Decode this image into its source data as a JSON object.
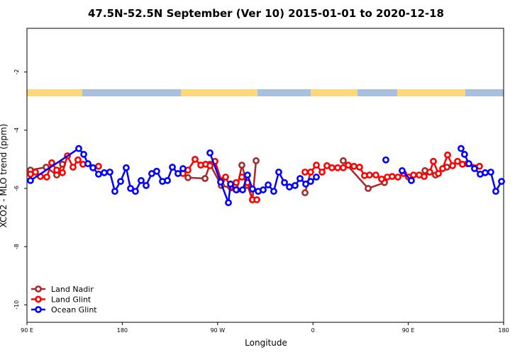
{
  "chart_data": {
    "type": "line",
    "title": "47.5N-52.5N September (Ver 10)   2015-01-01 to 2020-12-18",
    "xlabel": "Longitude",
    "ylabel": "XCO2 - MLO trend (ppm)",
    "xlim": [
      90,
      540
    ],
    "xticks": [
      {
        "value": 90,
        "label": "90 E"
      },
      180,
      {
        "value": 270,
        "label": "90 W"
      },
      {
        "value": 360,
        "label": "0"
      },
      {
        "value": 450,
        "label": "90 E"
      },
      180.0000001
    ],
    "ylim": [
      -10.6,
      -0.5
    ],
    "yticks": [
      -2,
      -4,
      -6,
      -8,
      -10
    ],
    "legend": "bottom-left",
    "series": [
      {
        "name": "Land Nadir",
        "color": "#a52a2a",
        "x": [
          93.3,
          108.1,
          118.1,
          123.5,
          null,
          242.0,
          258.1,
          262.8,
          273.5,
          282.8,
          288.2,
          292.9,
          298.2,
          302.9,
          306.3,
          null,
          352.5,
          357.8,
          null,
          388.6,
          412.1,
          427.5,
          null,
          465.7,
          475.7,
          486.4
        ],
        "values": [
          -5.37,
          -5.27,
          -5.54,
          -5.17,
          null,
          -5.63,
          -5.66,
          -5.17,
          -5.9,
          -5.98,
          -6.05,
          -5.2,
          -5.9,
          -6.39,
          -5.05,
          null,
          -6.15,
          -5.44,
          null,
          -5.05,
          -6.0,
          -5.8,
          null,
          -5.39,
          -5.54,
          -5.27
        ]
      },
      {
        "name": "Land Glint",
        "color": "#ff0000",
        "x": [
          93.3,
          98.0,
          102.7,
          108.7,
          113.4,
          118.1,
          123.5,
          128.2,
          133.5,
          138.2,
          142.9,
          157.6,
          null,
          237.3,
          242.0,
          248.7,
          254.1,
          258.7,
          262.8,
          267.5,
          273.5,
          277.5,
          282.2,
          287.5,
          292.9,
          298.2,
          302.9,
          307.0,
          null,
          352.5,
          357.8,
          363.2,
          368.6,
          373.2,
          377.9,
          383.3,
          388.6,
          393.3,
          398.7,
          404.0,
          408.7,
          413.4,
          419.4,
          424.8,
          430.2,
          434.8,
          440.2,
          445.6,
          450.2,
          454.9,
          460.3,
          465.0,
          470.3,
          473.7,
          478.4,
          482.4,
          487.1,
          491.8,
          496.5,
          501.1,
          505.8,
          517.2
        ],
        "values": [
          -5.51,
          -5.44,
          -5.59,
          -5.61,
          -5.12,
          -5.37,
          -5.46,
          -4.88,
          -5.27,
          -5.02,
          -5.17,
          -5.24,
          null,
          -5.49,
          -5.37,
          -5.0,
          -5.2,
          -5.17,
          -5.22,
          -5.07,
          -5.73,
          -5.61,
          -5.95,
          -5.8,
          -5.61,
          -5.8,
          -6.39,
          -6.39,
          null,
          -5.44,
          -5.44,
          -5.2,
          -5.44,
          -5.22,
          -5.29,
          -5.29,
          -5.29,
          -5.2,
          -5.24,
          -5.27,
          -5.56,
          -5.54,
          -5.54,
          -5.68,
          -5.61,
          -5.59,
          -5.61,
          -5.49,
          -5.61,
          -5.54,
          -5.54,
          -5.59,
          -5.44,
          -5.07,
          -5.49,
          -5.32,
          -4.85,
          -5.22,
          -5.07,
          -5.17,
          -5.15,
          -5.24
        ]
      },
      {
        "name": "Ocean Glint",
        "color": "#0000ff",
        "x": [
          93.3,
          138.9,
          143.6,
          147.6,
          152.3,
          157.6,
          163.0,
          168.3,
          173.0,
          178.4,
          183.7,
          187.8,
          192.4,
          197.8,
          202.5,
          207.8,
          212.5,
          217.9,
          222.6,
          227.3,
          232.6,
          237.3,
          null,
          262.8,
          272.8,
          280.2,
          282.2,
          287.5,
          293.6,
          298.2,
          302.9,
          308.3,
          313.0,
          317.7,
          323.0,
          327.7,
          333.1,
          337.8,
          343.1,
          347.8,
          353.2,
          357.8,
          363.2,
          null,
          428.8,
          null,
          444.2,
          452.9,
          null,
          499.8,
          503.1,
          507.2,
          512.5,
          517.9,
          522.6,
          527.9,
          532.6,
          538.0
        ],
        "values": [
          -5.73,
          -4.63,
          -4.83,
          -5.15,
          -5.29,
          -5.51,
          -5.46,
          -5.44,
          -6.1,
          -5.76,
          -5.29,
          -6.0,
          -6.1,
          -5.73,
          -5.9,
          -5.49,
          -5.41,
          -5.76,
          -5.73,
          -5.27,
          -5.49,
          -5.32,
          null,
          -4.78,
          -5.78,
          -6.49,
          -5.85,
          -6.05,
          -6.05,
          -5.54,
          -6.02,
          -6.1,
          -6.05,
          -5.88,
          -6.1,
          -5.44,
          -5.8,
          -5.95,
          -5.9,
          -5.66,
          -5.85,
          -5.76,
          -5.61,
          null,
          -5.02,
          null,
          -5.39,
          -5.73,
          null,
          -4.63,
          -4.83,
          -5.15,
          -5.32,
          -5.51,
          -5.46,
          -5.44,
          -6.1,
          -5.76
        ]
      }
    ]
  }
}
